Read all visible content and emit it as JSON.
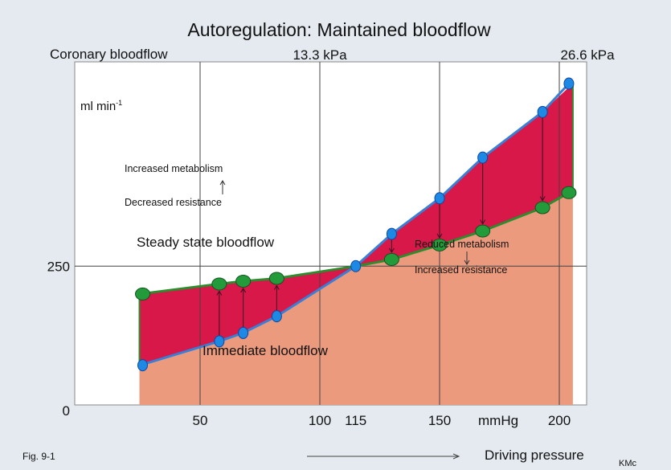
{
  "colors": {
    "background": "#e4eaf0",
    "plot_area": "#ffffff",
    "immediate_fill": "#ec9a7d",
    "metabolic_gap": "#d71848",
    "steady_line": "#2e8b2e",
    "immediate_line": "#3a7fd6",
    "blue_dot": "#1e88e5",
    "green_dot": "#239b3a",
    "steady_label": "#1a8a2a",
    "immediate_label": "#3b1e8c"
  },
  "chart_data": {
    "type": "area",
    "title": "Autoregulation: Maintained bloodflow",
    "ylabel": "Coronary bloodflow",
    "yunit": "ml min-1",
    "xlabel": "Driving pressure",
    "xunit": "mmHg",
    "xlim": [
      0,
      212
    ],
    "ylim": [
      0,
      615
    ],
    "xticks": [
      50,
      100,
      115,
      150,
      200
    ],
    "yticks": [
      0,
      250
    ],
    "kpa_markers": [
      {
        "x": 100,
        "label": "13.3 kPa"
      },
      {
        "x": 200,
        "label": "26.6 kPa"
      }
    ],
    "series": [
      {
        "name": "Steady state bloodflow",
        "x": [
          25,
          58,
          68,
          82,
          115,
          130,
          150,
          168,
          193,
          204
        ],
        "y": [
          200,
          218,
          223,
          228,
          250,
          262,
          288,
          313,
          355,
          382
        ]
      },
      {
        "name": "Immediate bloodflow",
        "x": [
          25,
          58,
          68,
          82,
          115,
          130,
          150,
          168,
          193,
          204
        ],
        "y": [
          72,
          115,
          130,
          160,
          250,
          308,
          372,
          445,
          527,
          578
        ]
      }
    ],
    "region_x": [
      25,
      205
    ],
    "annotations": [
      {
        "line1": "Increased metabolism",
        "line2": "Decreased resistance"
      },
      {
        "line1": "Reduced metabolism",
        "line2": "Increased resistance"
      }
    ]
  },
  "footer": {
    "figure_id": "Fig. 9-1",
    "author": "KMc"
  }
}
